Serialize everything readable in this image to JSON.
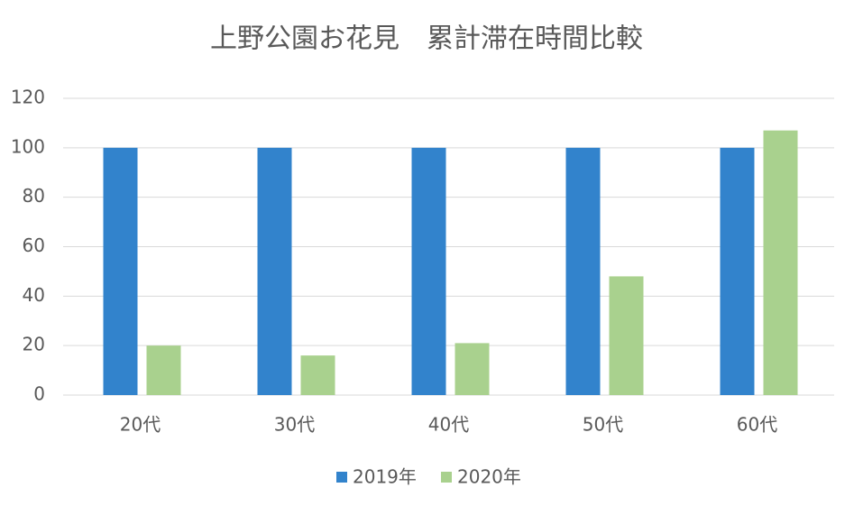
{
  "chart_data": {
    "type": "bar",
    "title": "上野公園お花見　累計滞在時間比較",
    "categories": [
      "20代",
      "30代",
      "40代",
      "50代",
      "60代"
    ],
    "series": [
      {
        "name": "2019年",
        "color": "#3283cc",
        "values": [
          100,
          100,
          100,
          100,
          100
        ]
      },
      {
        "name": "2020年",
        "color": "#a9d18e",
        "values": [
          20,
          16,
          21,
          48,
          107
        ]
      }
    ],
    "ylim": [
      0,
      120
    ],
    "yticks": [
      0,
      20,
      40,
      60,
      80,
      100,
      120
    ],
    "grid": true,
    "legend": "bottom"
  }
}
